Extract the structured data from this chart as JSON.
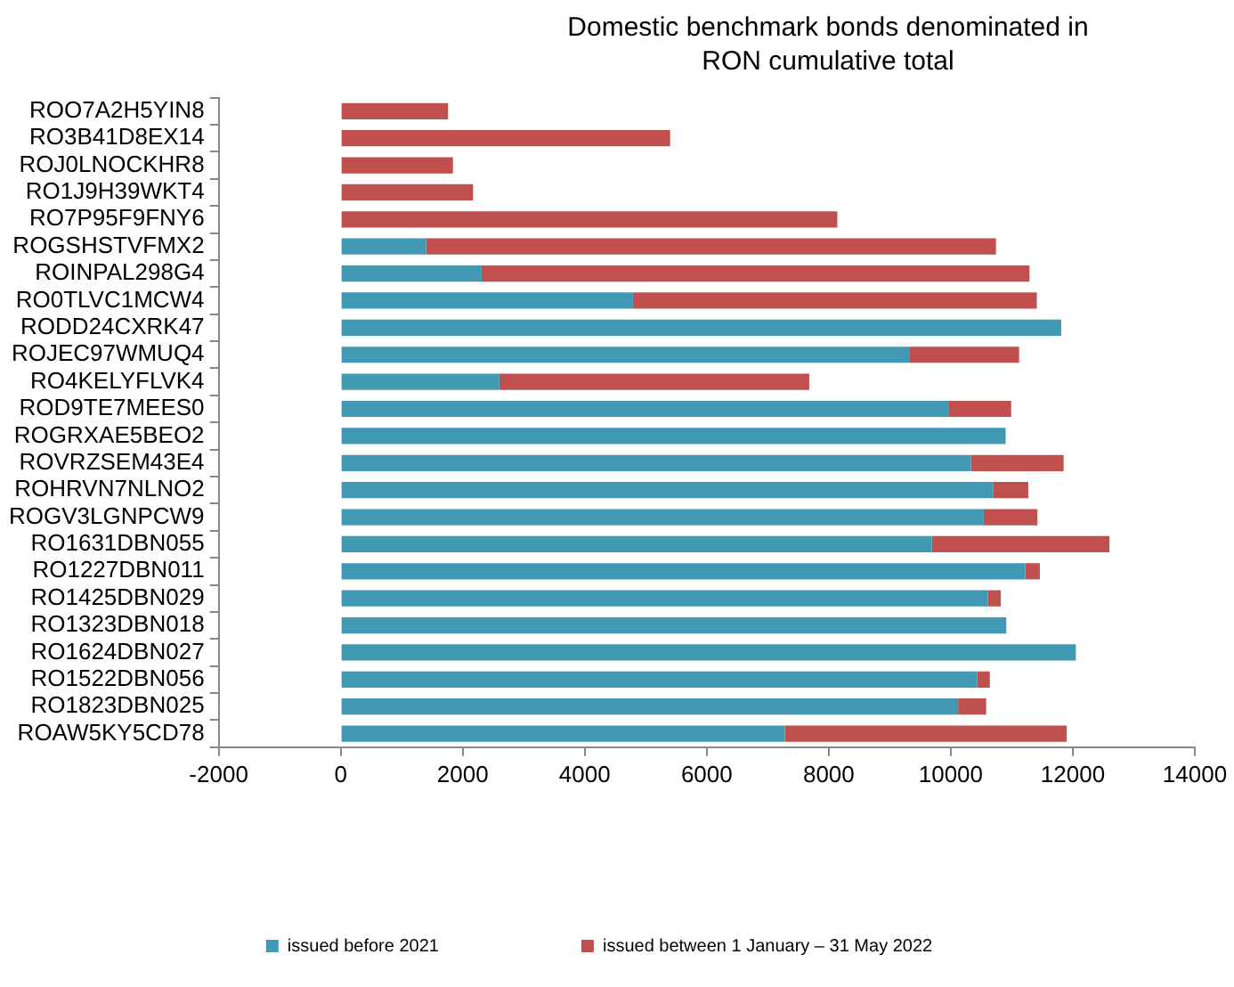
{
  "chart_data": {
    "type": "bar",
    "orientation": "horizontal",
    "stacked": true,
    "title": "Domestic benchmark bonds denominated in RON cumulative total",
    "categories": [
      "ROO7A2H5YIN8",
      "RO3B41D8EX14",
      "ROJ0LNOCKHR8",
      "RO1J9H39WKT4",
      "RO7P95F9FNY6",
      "ROGSHSTVFMX2",
      "ROINPAL298G4",
      "RO0TLVC1MCW4",
      "RODD24CXRK47",
      "ROJEC97WMUQ4",
      "RO4KELYFLVK4",
      "ROD9TE7MEES0",
      "ROGRXAE5BEO2",
      "ROVRZSEM43E4",
      "ROHRVN7NLNO2",
      "ROGV3LGNPCW9",
      "RO1631DBN055",
      "RO1227DBN011",
      "RO1425DBN029",
      "RO1323DBN018",
      "RO1624DBN027",
      "RO1522DBN056",
      "RO1823DBN025",
      "ROAW5KY5CD78"
    ],
    "series": [
      {
        "name": "issued before 2021",
        "color": "#4299b3",
        "values": [
          0,
          0,
          0,
          0,
          0,
          1400,
          2310,
          4790,
          11810,
          9330,
          2600,
          9960,
          10900,
          10330,
          10700,
          10540,
          9690,
          11220,
          10610,
          10910,
          12050,
          10430,
          10120,
          7280
        ]
      },
      {
        "name": "issued between 1 January – 31 May 2022",
        "color": "#c0504d",
        "values": [
          1760,
          5400,
          1840,
          2170,
          8140,
          9340,
          8980,
          6620,
          0,
          1790,
          5080,
          1030,
          0,
          1520,
          570,
          880,
          2910,
          240,
          210,
          0,
          0,
          210,
          460,
          4620
        ]
      }
    ],
    "xlim": [
      -2000,
      14000
    ],
    "xticks": [
      -2000,
      0,
      2000,
      4000,
      6000,
      8000,
      10000,
      12000,
      14000
    ],
    "grid": false,
    "legend": "bottom"
  }
}
